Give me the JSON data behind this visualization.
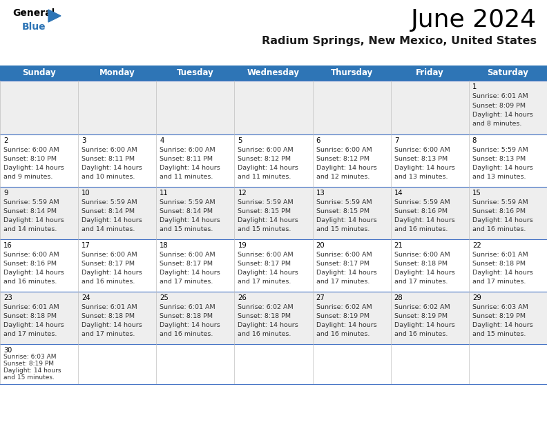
{
  "title": "June 2024",
  "subtitle": "Radium Springs, New Mexico, United States",
  "header_bg": "#2E75B6",
  "header_text_color": "#FFFFFF",
  "weekdays": [
    "Sunday",
    "Monday",
    "Tuesday",
    "Wednesday",
    "Thursday",
    "Friday",
    "Saturday"
  ],
  "row_colors": [
    "#EEEEEE",
    "#FFFFFF",
    "#EEEEEE",
    "#FFFFFF",
    "#EEEEEE",
    "#FFFFFF"
  ],
  "grid_line_color": "#4472C4",
  "day_num_color": "#000000",
  "cell_text_color": "#333333",
  "calendar": [
    [
      null,
      null,
      null,
      null,
      null,
      null,
      {
        "day": 1,
        "sunrise": "6:01 AM",
        "sunset": "8:09 PM",
        "daylight": "14 hours and 8 minutes."
      }
    ],
    [
      {
        "day": 2,
        "sunrise": "6:00 AM",
        "sunset": "8:10 PM",
        "daylight": "14 hours and 9 minutes."
      },
      {
        "day": 3,
        "sunrise": "6:00 AM",
        "sunset": "8:11 PM",
        "daylight": "14 hours and 10 minutes."
      },
      {
        "day": 4,
        "sunrise": "6:00 AM",
        "sunset": "8:11 PM",
        "daylight": "14 hours and 11 minutes."
      },
      {
        "day": 5,
        "sunrise": "6:00 AM",
        "sunset": "8:12 PM",
        "daylight": "14 hours and 11 minutes."
      },
      {
        "day": 6,
        "sunrise": "6:00 AM",
        "sunset": "8:12 PM",
        "daylight": "14 hours and 12 minutes."
      },
      {
        "day": 7,
        "sunrise": "6:00 AM",
        "sunset": "8:13 PM",
        "daylight": "14 hours and 13 minutes."
      },
      {
        "day": 8,
        "sunrise": "5:59 AM",
        "sunset": "8:13 PM",
        "daylight": "14 hours and 13 minutes."
      }
    ],
    [
      {
        "day": 9,
        "sunrise": "5:59 AM",
        "sunset": "8:14 PM",
        "daylight": "14 hours and 14 minutes."
      },
      {
        "day": 10,
        "sunrise": "5:59 AM",
        "sunset": "8:14 PM",
        "daylight": "14 hours and 14 minutes."
      },
      {
        "day": 11,
        "sunrise": "5:59 AM",
        "sunset": "8:14 PM",
        "daylight": "14 hours and 15 minutes."
      },
      {
        "day": 12,
        "sunrise": "5:59 AM",
        "sunset": "8:15 PM",
        "daylight": "14 hours and 15 minutes."
      },
      {
        "day": 13,
        "sunrise": "5:59 AM",
        "sunset": "8:15 PM",
        "daylight": "14 hours and 15 minutes."
      },
      {
        "day": 14,
        "sunrise": "5:59 AM",
        "sunset": "8:16 PM",
        "daylight": "14 hours and 16 minutes."
      },
      {
        "day": 15,
        "sunrise": "5:59 AM",
        "sunset": "8:16 PM",
        "daylight": "14 hours and 16 minutes."
      }
    ],
    [
      {
        "day": 16,
        "sunrise": "6:00 AM",
        "sunset": "8:16 PM",
        "daylight": "14 hours and 16 minutes."
      },
      {
        "day": 17,
        "sunrise": "6:00 AM",
        "sunset": "8:17 PM",
        "daylight": "14 hours and 16 minutes."
      },
      {
        "day": 18,
        "sunrise": "6:00 AM",
        "sunset": "8:17 PM",
        "daylight": "14 hours and 17 minutes."
      },
      {
        "day": 19,
        "sunrise": "6:00 AM",
        "sunset": "8:17 PM",
        "daylight": "14 hours and 17 minutes."
      },
      {
        "day": 20,
        "sunrise": "6:00 AM",
        "sunset": "8:17 PM",
        "daylight": "14 hours and 17 minutes."
      },
      {
        "day": 21,
        "sunrise": "6:00 AM",
        "sunset": "8:18 PM",
        "daylight": "14 hours and 17 minutes."
      },
      {
        "day": 22,
        "sunrise": "6:01 AM",
        "sunset": "8:18 PM",
        "daylight": "14 hours and 17 minutes."
      }
    ],
    [
      {
        "day": 23,
        "sunrise": "6:01 AM",
        "sunset": "8:18 PM",
        "daylight": "14 hours and 17 minutes."
      },
      {
        "day": 24,
        "sunrise": "6:01 AM",
        "sunset": "8:18 PM",
        "daylight": "14 hours and 17 minutes."
      },
      {
        "day": 25,
        "sunrise": "6:01 AM",
        "sunset": "8:18 PM",
        "daylight": "14 hours and 16 minutes."
      },
      {
        "day": 26,
        "sunrise": "6:02 AM",
        "sunset": "8:18 PM",
        "daylight": "14 hours and 16 minutes."
      },
      {
        "day": 27,
        "sunrise": "6:02 AM",
        "sunset": "8:19 PM",
        "daylight": "14 hours and 16 minutes."
      },
      {
        "day": 28,
        "sunrise": "6:02 AM",
        "sunset": "8:19 PM",
        "daylight": "14 hours and 16 minutes."
      },
      {
        "day": 29,
        "sunrise": "6:03 AM",
        "sunset": "8:19 PM",
        "daylight": "14 hours and 15 minutes."
      }
    ],
    [
      {
        "day": 30,
        "sunrise": "6:03 AM",
        "sunset": "8:19 PM",
        "daylight": "14 hours and 15 minutes."
      },
      null,
      null,
      null,
      null,
      null,
      null
    ]
  ]
}
